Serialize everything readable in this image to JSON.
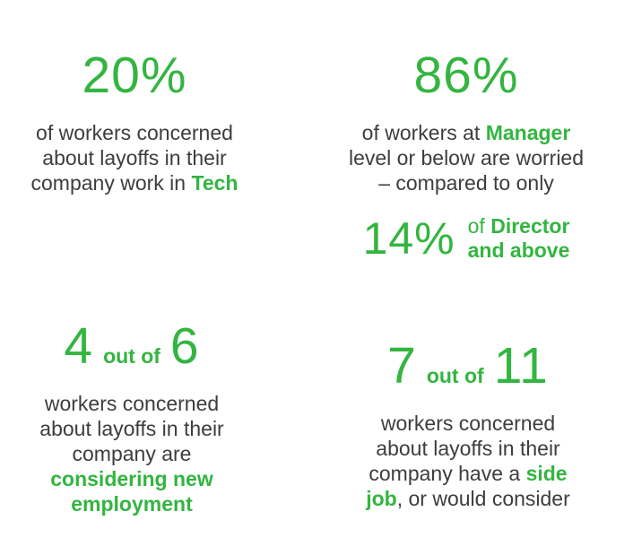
{
  "colors": {
    "green": "#33b540",
    "text": "#3d3d3c",
    "background": "#ffffff"
  },
  "stat_tech": {
    "value": "20%",
    "line1": "of workers concerned",
    "line2": "about layoffs in their",
    "line3_pre": "company work in ",
    "line3_highlight": "Tech"
  },
  "stat_manager": {
    "value": "86%",
    "line1_pre": "of workers at ",
    "line1_highlight": "Manager",
    "line2": "level or below are worried",
    "line3": "– compared to only",
    "sub_stat": {
      "value": "14%",
      "line1_pre": "of ",
      "line1_highlight": "Director",
      "line2_highlight": "and above"
    }
  },
  "stat_new_employment": {
    "numerator": "4",
    "connector": "out of",
    "denominator": "6",
    "line1": "workers concerned",
    "line2": "about layoffs in their",
    "line3": "company are",
    "line4_highlight": "considering new",
    "line5_highlight": "employment"
  },
  "stat_side_job": {
    "numerator": "7",
    "connector": "out of",
    "denominator": "11",
    "line1": "workers concerned",
    "line2": "about layoffs in their",
    "line3_pre": "company have a ",
    "line3_highlight": "side",
    "line4_highlight": "job",
    "line4_post": ", or would consider"
  }
}
